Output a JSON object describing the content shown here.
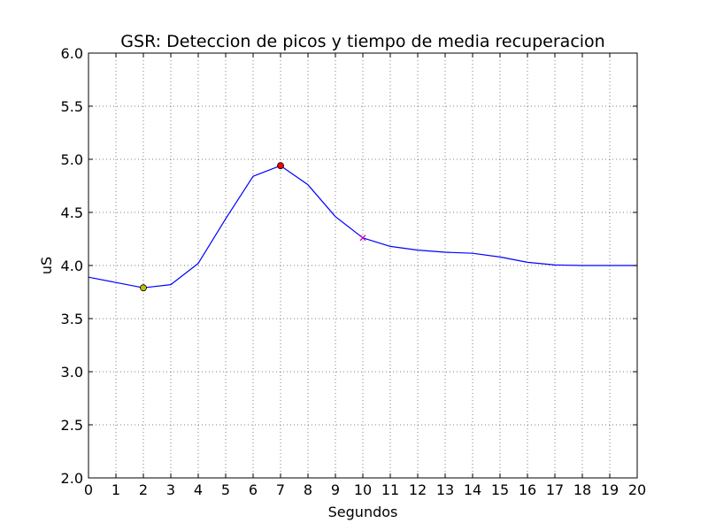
{
  "chart_data": {
    "type": "line",
    "title": "GSR: Deteccion de picos y tiempo de media recuperacion",
    "xlabel": "Segundos",
    "ylabel": "uS",
    "xlim": [
      0,
      20
    ],
    "ylim": [
      2.0,
      6.0
    ],
    "xticks": [
      "0",
      "1",
      "2",
      "3",
      "4",
      "5",
      "6",
      "7",
      "8",
      "9",
      "10",
      "11",
      "12",
      "13",
      "14",
      "15",
      "16",
      "17",
      "18",
      "19",
      "20"
    ],
    "yticks": [
      "2.0",
      "2.5",
      "3.0",
      "3.5",
      "4.0",
      "4.5",
      "5.0",
      "5.5",
      "6.0"
    ],
    "grid": true,
    "series": [
      {
        "color": "#0000ff",
        "x": [
          0,
          1,
          2,
          3,
          4,
          5,
          6,
          7,
          8,
          9,
          10,
          11,
          12,
          13,
          14,
          15,
          16,
          17,
          18,
          19,
          20
        ],
        "y": [
          3.89,
          3.84,
          3.79,
          3.82,
          4.02,
          4.44,
          4.84,
          4.94,
          4.76,
          4.46,
          4.26,
          4.18,
          4.145,
          4.125,
          4.115,
          4.08,
          4.03,
          4.005,
          4.0,
          4.0,
          4.0
        ]
      }
    ],
    "markers": [
      {
        "role": "onset",
        "x": 2,
        "y": 3.79,
        "color": "#bfbf00",
        "shape": "circle"
      },
      {
        "role": "peak",
        "x": 7,
        "y": 4.94,
        "color": "#ff0000",
        "shape": "circle"
      },
      {
        "role": "half-recovery",
        "x": 10,
        "y": 4.26,
        "color": "#bf00bf",
        "shape": "x"
      }
    ]
  }
}
